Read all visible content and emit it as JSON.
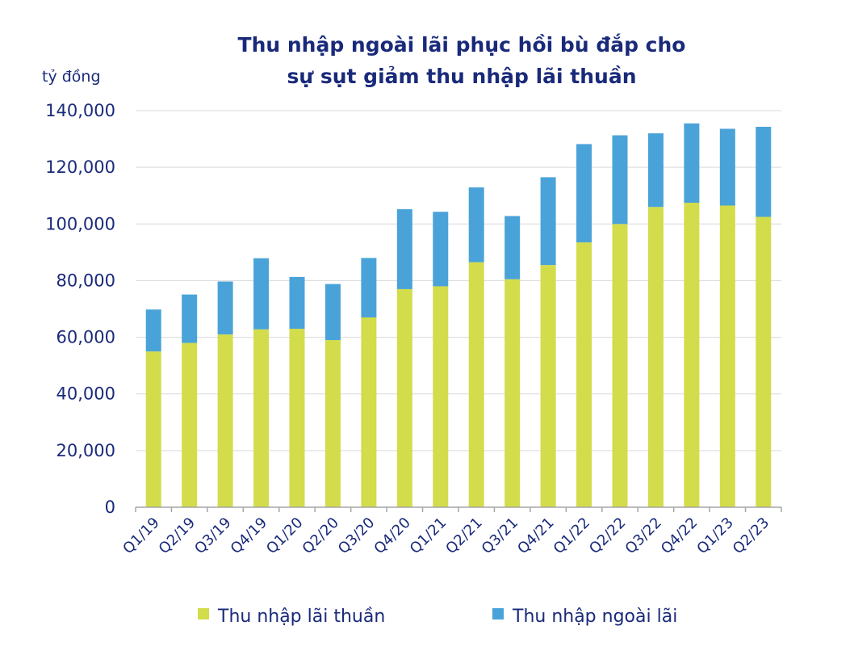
{
  "colors": {
    "net_interest": "#d3dc4a",
    "non_interest": "#4aa3d8",
    "title": "#1a2a7a",
    "text": "#1a2a7a",
    "grid": "#d9d9d9",
    "axis": "#a6a6a6"
  },
  "chart_data": {
    "type": "bar",
    "stacked": true,
    "title": [
      "Thu nhập ngoài lãi phục hồi bù đắp cho",
      "sự sụt giảm thu nhập lãi thuần"
    ],
    "ylabel": "tỷ đồng",
    "xlabel": "",
    "ylim": [
      0,
      140000
    ],
    "yticks": [
      0,
      20000,
      40000,
      60000,
      80000,
      100000,
      120000,
      140000
    ],
    "ytick_labels": [
      "0",
      "20,000",
      "40,000",
      "60,000",
      "80,000",
      "100,000",
      "120,000",
      "140,000"
    ],
    "grid": true,
    "legend_position": "bottom",
    "categories": [
      "Q1/19",
      "Q2/19",
      "Q3/19",
      "Q4/19",
      "Q1/20",
      "Q2/20",
      "Q3/20",
      "Q4/20",
      "Q1/21",
      "Q2/21",
      "Q3/21",
      "Q4/21",
      "Q1/22",
      "Q2/22",
      "Q3/22",
      "Q4/22",
      "Q1/23",
      "Q2/23"
    ],
    "series": [
      {
        "name": "Thu nhập lãi thuần",
        "color_key": "net_interest",
        "values": [
          55000,
          58000,
          61000,
          62800,
          63000,
          59000,
          67000,
          77000,
          78000,
          86500,
          80500,
          85500,
          93500,
          100000,
          106000,
          107500,
          106500,
          102500
        ]
      },
      {
        "name": "Thu nhập ngoài lãi",
        "color_key": "non_interest",
        "values": [
          14800,
          17100,
          18700,
          25100,
          18300,
          19800,
          21000,
          28200,
          26300,
          26400,
          22300,
          31000,
          34700,
          31300,
          26000,
          28000,
          27100,
          31800
        ]
      }
    ]
  }
}
